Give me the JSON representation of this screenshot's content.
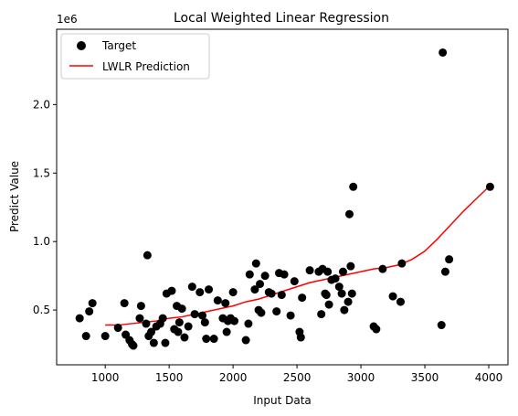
{
  "chart_data": {
    "type": "scatter",
    "title": "Local Weighted Linear Regression",
    "xlabel": "Input Data",
    "ylabel": "Predict Value",
    "y_offset_label": "1e6",
    "xlim": [
      620,
      4150
    ],
    "ylim": [
      0.1,
      2.55
    ],
    "x_ticks": [
      1000,
      1500,
      2000,
      2500,
      3000,
      3500,
      4000
    ],
    "x_tick_labels": [
      "1000",
      "1500",
      "2000",
      "2500",
      "3000",
      "3500",
      "4000"
    ],
    "y_ticks": [
      0.5,
      1.0,
      1.5,
      2.0
    ],
    "y_tick_labels": [
      "0.5",
      "1.0",
      "1.5",
      "2.0"
    ],
    "grid": false,
    "legend_placement": "top-left",
    "series": [
      {
        "name": "Target",
        "kind": "scatter",
        "color": "#000000",
        "points": [
          [
            800,
            0.44
          ],
          [
            850,
            0.31
          ],
          [
            875,
            0.49
          ],
          [
            900,
            0.55
          ],
          [
            1000,
            0.31
          ],
          [
            1100,
            0.37
          ],
          [
            1150,
            0.55
          ],
          [
            1160,
            0.32
          ],
          [
            1190,
            0.28
          ],
          [
            1210,
            0.25
          ],
          [
            1220,
            0.24
          ],
          [
            1270,
            0.44
          ],
          [
            1280,
            0.53
          ],
          [
            1320,
            0.4
          ],
          [
            1330,
            0.9
          ],
          [
            1340,
            0.31
          ],
          [
            1360,
            0.34
          ],
          [
            1380,
            0.26
          ],
          [
            1400,
            0.38
          ],
          [
            1430,
            0.4
          ],
          [
            1450,
            0.44
          ],
          [
            1470,
            0.26
          ],
          [
            1480,
            0.62
          ],
          [
            1520,
            0.64
          ],
          [
            1540,
            0.36
          ],
          [
            1560,
            0.53
          ],
          [
            1570,
            0.34
          ],
          [
            1580,
            0.41
          ],
          [
            1600,
            0.51
          ],
          [
            1620,
            0.3
          ],
          [
            1650,
            0.38
          ],
          [
            1680,
            0.67
          ],
          [
            1700,
            0.47
          ],
          [
            1740,
            0.63
          ],
          [
            1760,
            0.46
          ],
          [
            1780,
            0.41
          ],
          [
            1790,
            0.29
          ],
          [
            1810,
            0.65
          ],
          [
            1850,
            0.29
          ],
          [
            1880,
            0.57
          ],
          [
            1920,
            0.44
          ],
          [
            1940,
            0.55
          ],
          [
            1950,
            0.34
          ],
          [
            1960,
            0.42
          ],
          [
            1980,
            0.44
          ],
          [
            2000,
            0.63
          ],
          [
            2010,
            0.42
          ],
          [
            2100,
            0.28
          ],
          [
            2120,
            0.4
          ],
          [
            2130,
            0.76
          ],
          [
            2170,
            0.65
          ],
          [
            2180,
            0.84
          ],
          [
            2200,
            0.5
          ],
          [
            2210,
            0.69
          ],
          [
            2220,
            0.48
          ],
          [
            2250,
            0.75
          ],
          [
            2280,
            0.63
          ],
          [
            2300,
            0.62
          ],
          [
            2340,
            0.49
          ],
          [
            2360,
            0.77
          ],
          [
            2380,
            0.61
          ],
          [
            2400,
            0.76
          ],
          [
            2450,
            0.46
          ],
          [
            2480,
            0.71
          ],
          [
            2520,
            0.34
          ],
          [
            2530,
            0.3
          ],
          [
            2540,
            0.59
          ],
          [
            2600,
            0.79
          ],
          [
            2670,
            0.78
          ],
          [
            2690,
            0.47
          ],
          [
            2700,
            0.8
          ],
          [
            2720,
            0.62
          ],
          [
            2730,
            0.61
          ],
          [
            2740,
            0.78
          ],
          [
            2750,
            0.54
          ],
          [
            2770,
            0.72
          ],
          [
            2800,
            0.73
          ],
          [
            2830,
            0.67
          ],
          [
            2850,
            0.62
          ],
          [
            2860,
            0.78
          ],
          [
            2870,
            0.5
          ],
          [
            2900,
            0.56
          ],
          [
            2910,
            1.2
          ],
          [
            2920,
            0.82
          ],
          [
            2930,
            0.62
          ],
          [
            2940,
            1.4
          ],
          [
            3100,
            0.38
          ],
          [
            3120,
            0.36
          ],
          [
            3170,
            0.8
          ],
          [
            3250,
            0.6
          ],
          [
            3310,
            0.56
          ],
          [
            3320,
            0.84
          ],
          [
            3630,
            0.39
          ],
          [
            3640,
            2.38
          ],
          [
            3660,
            0.78
          ],
          [
            3690,
            0.87
          ],
          [
            4010,
            1.4
          ]
        ]
      },
      {
        "name": "LWLR Prediction",
        "kind": "line",
        "color": "#ff0000",
        "points": [
          [
            1000,
            0.39
          ],
          [
            1100,
            0.39
          ],
          [
            1200,
            0.4
          ],
          [
            1300,
            0.41
          ],
          [
            1400,
            0.42
          ],
          [
            1500,
            0.44
          ],
          [
            1600,
            0.45
          ],
          [
            1700,
            0.47
          ],
          [
            1800,
            0.49
          ],
          [
            1900,
            0.51
          ],
          [
            2000,
            0.53
          ],
          [
            2100,
            0.56
          ],
          [
            2200,
            0.58
          ],
          [
            2300,
            0.61
          ],
          [
            2400,
            0.64
          ],
          [
            2500,
            0.67
          ],
          [
            2600,
            0.7
          ],
          [
            2700,
            0.72
          ],
          [
            2800,
            0.74
          ],
          [
            2900,
            0.76
          ],
          [
            3000,
            0.78
          ],
          [
            3100,
            0.8
          ],
          [
            3200,
            0.81
          ],
          [
            3300,
            0.83
          ],
          [
            3400,
            0.87
          ],
          [
            3500,
            0.93
          ],
          [
            3600,
            1.02
          ],
          [
            3700,
            1.12
          ],
          [
            3800,
            1.22
          ],
          [
            3900,
            1.31
          ],
          [
            4000,
            1.4
          ]
        ]
      }
    ]
  }
}
